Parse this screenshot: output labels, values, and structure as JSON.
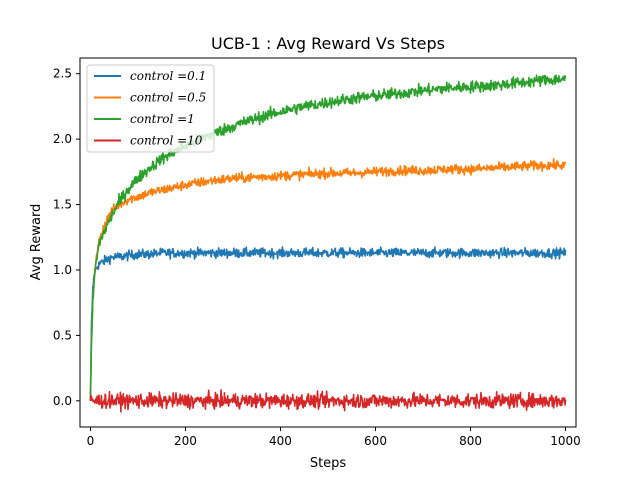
{
  "chart_data": {
    "type": "line",
    "title": "UCB-1 : Avg Reward Vs Steps",
    "xlabel": "Steps",
    "ylabel": "Avg Reward",
    "xlim": [
      -22,
      1022
    ],
    "ylim": [
      -0.2,
      2.62
    ],
    "xticks": [
      0,
      200,
      400,
      600,
      800,
      1000
    ],
    "xtick_labels": [
      "0",
      "200",
      "400",
      "600",
      "800",
      "1000"
    ],
    "yticks": [
      0.0,
      0.5,
      1.0,
      1.5,
      2.0,
      2.5
    ],
    "ytick_labels": [
      "0.0",
      "0.5",
      "1.0",
      "1.5",
      "2.0",
      "2.5"
    ],
    "grid": false,
    "legend_position": "top-left",
    "x": [
      0,
      2,
      5,
      8,
      10,
      15,
      20,
      30,
      40,
      50,
      60,
      80,
      100,
      125,
      150,
      200,
      250,
      300,
      350,
      400,
      450,
      500,
      550,
      600,
      650,
      700,
      750,
      800,
      850,
      900,
      950,
      1000
    ],
    "series": [
      {
        "name": "control =0.1",
        "color": "#1f77b4",
        "values": [
          0.0,
          0.55,
          0.85,
          0.97,
          1.0,
          1.03,
          1.05,
          1.07,
          1.09,
          1.1,
          1.1,
          1.11,
          1.12,
          1.12,
          1.13,
          1.13,
          1.13,
          1.13,
          1.13,
          1.13,
          1.13,
          1.13,
          1.13,
          1.13,
          1.13,
          1.13,
          1.13,
          1.13,
          1.13,
          1.13,
          1.13,
          1.13
        ]
      },
      {
        "name": "control =0.5",
        "color": "#ff7f0e",
        "values": [
          0.0,
          0.45,
          0.78,
          0.95,
          1.02,
          1.15,
          1.25,
          1.35,
          1.42,
          1.47,
          1.5,
          1.54,
          1.56,
          1.59,
          1.61,
          1.65,
          1.68,
          1.7,
          1.71,
          1.72,
          1.73,
          1.74,
          1.74,
          1.75,
          1.76,
          1.76,
          1.77,
          1.77,
          1.78,
          1.79,
          1.8,
          1.8
        ]
      },
      {
        "name": "control =1",
        "color": "#2ca02c",
        "values": [
          0.0,
          0.42,
          0.75,
          0.93,
          1.0,
          1.13,
          1.22,
          1.3,
          1.38,
          1.45,
          1.52,
          1.62,
          1.7,
          1.78,
          1.85,
          1.95,
          2.03,
          2.1,
          2.16,
          2.21,
          2.25,
          2.28,
          2.31,
          2.33,
          2.35,
          2.37,
          2.39,
          2.4,
          2.41,
          2.43,
          2.45,
          2.46
        ]
      },
      {
        "name": "control =10",
        "color": "#d62728",
        "values": [
          0.0,
          0.0,
          0.0,
          0.0,
          0.0,
          0.0,
          0.0,
          0.0,
          0.0,
          0.0,
          0.0,
          0.0,
          0.0,
          0.0,
          0.0,
          0.0,
          0.0,
          0.0,
          0.0,
          0.0,
          0.0,
          0.0,
          0.0,
          0.0,
          0.0,
          0.0,
          0.0,
          0.0,
          0.0,
          0.0,
          0.0,
          0.0
        ]
      }
    ]
  }
}
